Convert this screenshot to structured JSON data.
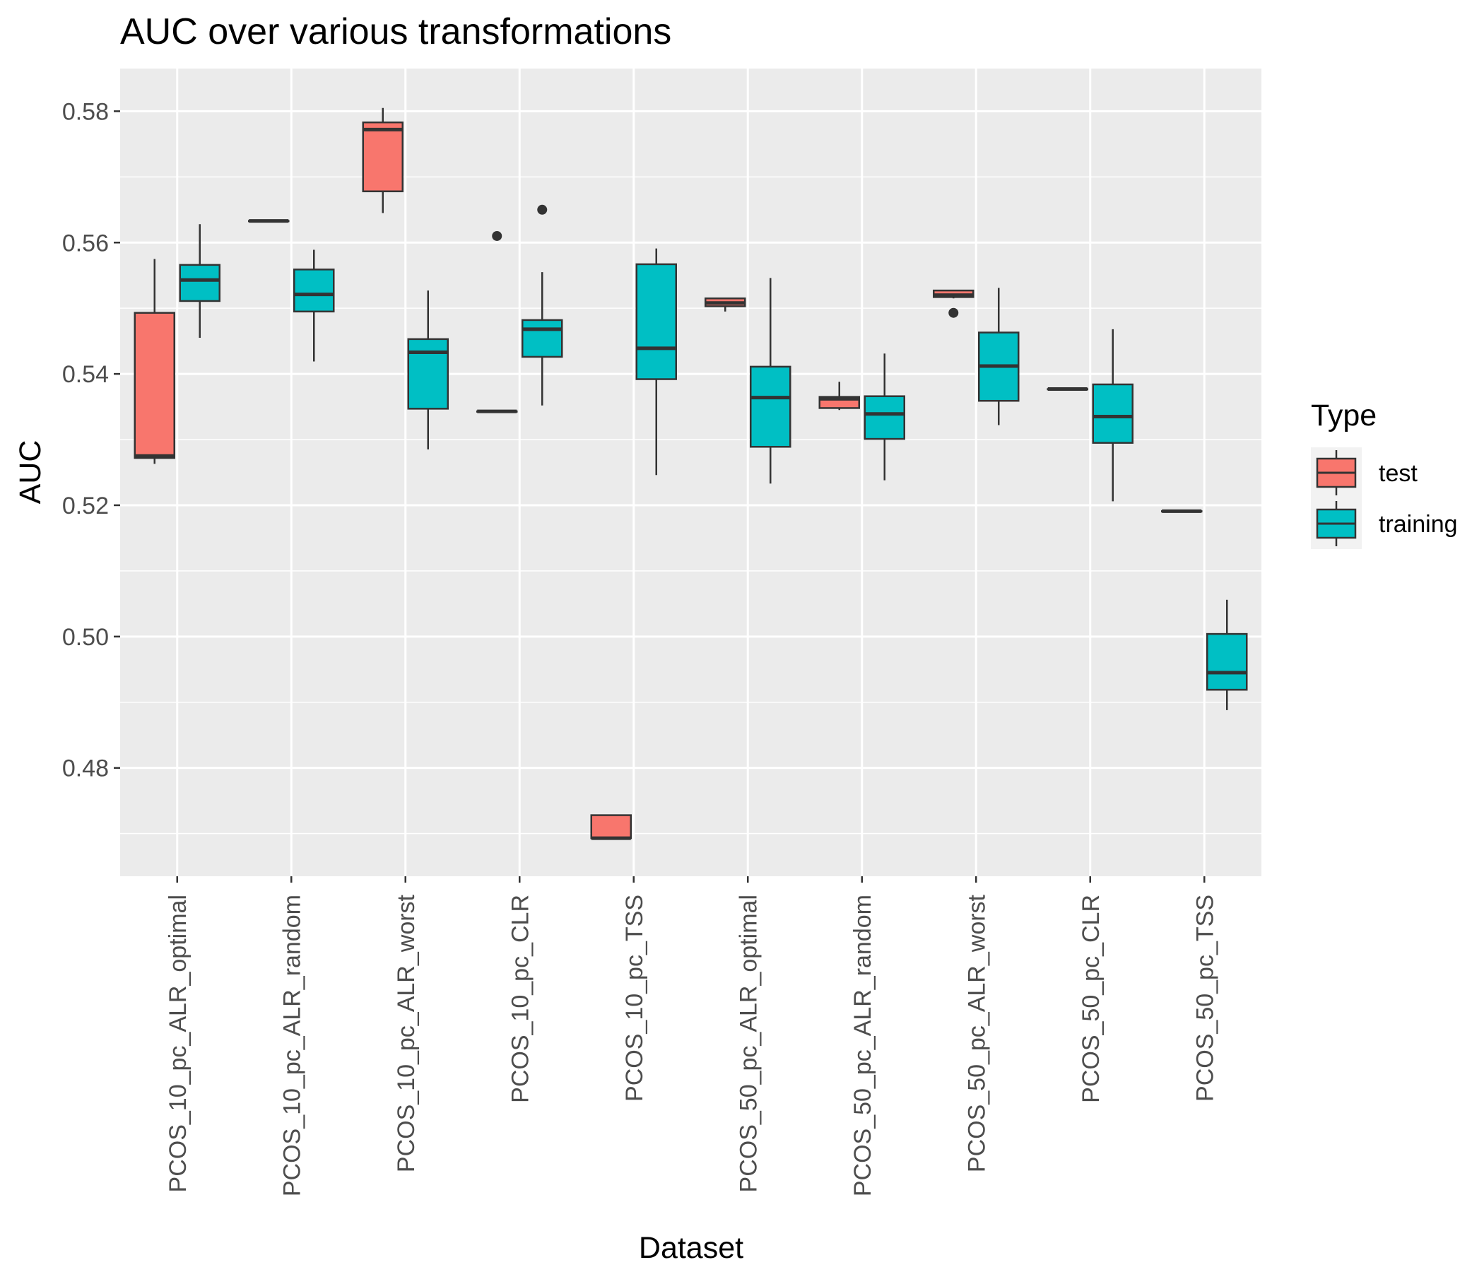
{
  "chart_data": {
    "type": "boxplot",
    "title": "AUC over various transformations",
    "xlabel": "Dataset",
    "ylabel": "AUC",
    "ylim": [
      0.4635,
      0.5865
    ],
    "yticks": [
      "0.48",
      "0.50",
      "0.52",
      "0.54",
      "0.56",
      "0.58"
    ],
    "grid": true,
    "legend": {
      "title": "Type",
      "position": "right",
      "items": [
        {
          "label": "test",
          "color": "#F8766D"
        },
        {
          "label": "training",
          "color": "#00BFC4"
        }
      ]
    },
    "categories": [
      "PCOS_10_pc_ALR_optimal",
      "PCOS_10_pc_ALR_random",
      "PCOS_10_pc_ALR_worst",
      "PCOS_10_pc_CLR",
      "PCOS_10_pc_TSS",
      "PCOS_50_pc_ALR_optimal",
      "PCOS_50_pc_ALR_random",
      "PCOS_50_pc_ALR_worst",
      "PCOS_50_pc_CLR",
      "PCOS_50_pc_TSS"
    ],
    "series": [
      {
        "name": "test",
        "color": "#F8766D",
        "boxes": [
          {
            "min": 0.5263,
            "q1": 0.5272,
            "median": 0.5275,
            "q3": 0.5493,
            "max": 0.5575,
            "outliers": []
          },
          {
            "min": 0.5633,
            "q1": 0.5633,
            "median": 0.5633,
            "q3": 0.5633,
            "max": 0.5633,
            "outliers": []
          },
          {
            "min": 0.5645,
            "q1": 0.5678,
            "median": 0.5772,
            "q3": 0.5783,
            "max": 0.5805,
            "outliers": []
          },
          {
            "min": 0.5343,
            "q1": 0.5343,
            "median": 0.5343,
            "q3": 0.5343,
            "max": 0.5343,
            "outliers": [
              0.561
            ]
          },
          {
            "min": 0.4693,
            "q1": 0.4693,
            "median": 0.4693,
            "q3": 0.4728,
            "max": 0.4728,
            "outliers": []
          },
          {
            "min": 0.5495,
            "q1": 0.5503,
            "median": 0.5508,
            "q3": 0.5515,
            "max": 0.5515,
            "outliers": []
          },
          {
            "min": 0.5345,
            "q1": 0.5348,
            "median": 0.5362,
            "q3": 0.5365,
            "max": 0.5388,
            "outliers": []
          },
          {
            "min": 0.5515,
            "q1": 0.5517,
            "median": 0.552,
            "q3": 0.5527,
            "max": 0.5527,
            "outliers": [
              0.5493
            ]
          },
          {
            "min": 0.5377,
            "q1": 0.5377,
            "median": 0.5377,
            "q3": 0.5377,
            "max": 0.5377,
            "outliers": []
          },
          {
            "min": 0.5191,
            "q1": 0.5191,
            "median": 0.5191,
            "q3": 0.5191,
            "max": 0.5191,
            "outliers": []
          }
        ]
      },
      {
        "name": "training",
        "color": "#00BFC4",
        "boxes": [
          {
            "min": 0.5455,
            "q1": 0.5511,
            "median": 0.5543,
            "q3": 0.5566,
            "max": 0.5628,
            "outliers": []
          },
          {
            "min": 0.5419,
            "q1": 0.5495,
            "median": 0.5521,
            "q3": 0.5559,
            "max": 0.5589,
            "outliers": []
          },
          {
            "min": 0.5285,
            "q1": 0.5347,
            "median": 0.5433,
            "q3": 0.5453,
            "max": 0.5527,
            "outliers": []
          },
          {
            "min": 0.5352,
            "q1": 0.5426,
            "median": 0.5468,
            "q3": 0.5482,
            "max": 0.5555,
            "outliers": [
              0.565
            ]
          },
          {
            "min": 0.5246,
            "q1": 0.5392,
            "median": 0.5439,
            "q3": 0.5567,
            "max": 0.5591,
            "outliers": []
          },
          {
            "min": 0.5233,
            "q1": 0.5289,
            "median": 0.5364,
            "q3": 0.5411,
            "max": 0.5546,
            "outliers": []
          },
          {
            "min": 0.5238,
            "q1": 0.5301,
            "median": 0.5339,
            "q3": 0.5366,
            "max": 0.5431,
            "outliers": []
          },
          {
            "min": 0.5322,
            "q1": 0.5359,
            "median": 0.5412,
            "q3": 0.5463,
            "max": 0.5531,
            "outliers": []
          },
          {
            "min": 0.5206,
            "q1": 0.5295,
            "median": 0.5335,
            "q3": 0.5384,
            "max": 0.5468,
            "outliers": []
          },
          {
            "min": 0.4888,
            "q1": 0.4919,
            "median": 0.4945,
            "q3": 0.5004,
            "max": 0.5056,
            "outliers": []
          }
        ]
      }
    ]
  }
}
